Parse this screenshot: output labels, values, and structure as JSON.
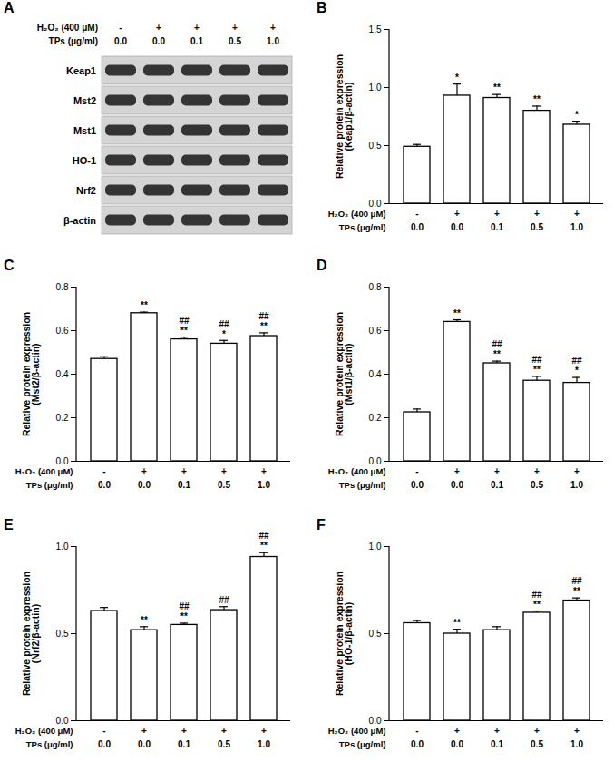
{
  "panel_a": {
    "title": "A",
    "x_label_rows": [
      {
        "label": "H₂O₂ (400 μM)",
        "values": [
          "-",
          "+",
          "+",
          "+",
          "+"
        ]
      },
      {
        "label": "TPs (μg/ml)",
        "values": [
          "0.0",
          "0.0",
          "0.1",
          "0.5",
          "1.0"
        ]
      }
    ],
    "proteins": [
      "Keap1",
      "Mst2",
      "Mst1",
      "HO-1",
      "Nrf2",
      "β-actin"
    ]
  },
  "chart_data": [
    {
      "type": "bar",
      "title": "B",
      "y_label": "Relative protein expression\n(Keap1/β-actin)",
      "x_label_rows": [
        {
          "label": "H₂O₂ (400 μM)",
          "values": [
            "-",
            "+",
            "+",
            "+",
            "+"
          ]
        },
        {
          "label": "TPs (μg/ml)",
          "values": [
            "0.0",
            "0.0",
            "0.1",
            "0.5",
            "1.0"
          ]
        }
      ],
      "values": [
        0.49,
        0.93,
        0.91,
        0.8,
        0.68
      ],
      "errors": [
        0.02,
        0.1,
        0.03,
        0.04,
        0.03
      ],
      "significance": [
        null,
        [
          "*"
        ],
        [
          "**"
        ],
        [
          "**"
        ],
        [
          "*"
        ]
      ],
      "color": "#ffffff",
      "ylim": [
        0,
        1.5
      ],
      "yticks": [
        {
          "value": 0,
          "label": "0.0"
        },
        {
          "value": 0.5,
          "label": "0.5"
        },
        {
          "value": 1.0,
          "label": "1.0"
        },
        {
          "value": 1.5,
          "label": "1.5"
        }
      ]
    },
    {
      "type": "bar",
      "title": "C",
      "y_label": "Relative protein expression\n(Mst2/β-actin)",
      "x_label_rows": [
        {
          "label": "H₂O₂ (400 μM)",
          "values": [
            "-",
            "+",
            "+",
            "+",
            "+"
          ]
        },
        {
          "label": "TPs (μg/ml)",
          "values": [
            "0.0",
            "0.0",
            "0.1",
            "0.5",
            "1.0"
          ]
        }
      ],
      "values": [
        0.47,
        0.68,
        0.56,
        0.54,
        0.575
      ],
      "errors": [
        0.01,
        0.005,
        0.01,
        0.015,
        0.015
      ],
      "significance": [
        null,
        [
          "**"
        ],
        [
          "##",
          "**"
        ],
        [
          "##",
          "*"
        ],
        [
          "##",
          "**"
        ]
      ],
      "color": "#ffffff",
      "ylim": [
        0,
        0.8
      ],
      "yticks": [
        {
          "value": 0,
          "label": "0.0"
        },
        0.2,
        0.4,
        0.6,
        0.8
      ]
    },
    {
      "type": "bar",
      "title": "D",
      "y_label": "Relative protein expression\n(Mst1/β-actin)",
      "x_label_rows": [
        {
          "label": "H₂O₂ (400 μM)",
          "values": [
            "-",
            "+",
            "+",
            "+",
            "+"
          ]
        },
        {
          "label": "TPs (μg/ml)",
          "values": [
            "0.0",
            "0.0",
            "0.1",
            "0.5",
            "1.0"
          ]
        }
      ],
      "values": [
        0.225,
        0.64,
        0.45,
        0.37,
        0.36
      ],
      "errors": [
        0.015,
        0.01,
        0.01,
        0.02,
        0.025
      ],
      "significance": [
        null,
        [
          "**"
        ],
        [
          "##",
          "**"
        ],
        [
          "##",
          "**"
        ],
        [
          "##",
          "*"
        ]
      ],
      "color": "#ffffff",
      "ylim": [
        0,
        0.8
      ],
      "yticks": [
        {
          "value": 0,
          "label": "0.0"
        },
        0.2,
        0.4,
        0.6,
        0.8
      ]
    },
    {
      "type": "bar",
      "title": "E",
      "y_label": "Relative protein expression\n(Nrf2/β-actin)",
      "x_label_rows": [
        {
          "label": "H₂O₂ (400 μM)",
          "values": [
            "-",
            "+",
            "+",
            "+",
            "+"
          ]
        },
        {
          "label": "TPs (μg/ml)",
          "values": [
            "0.0",
            "0.0",
            "0.1",
            "0.5",
            "1.0"
          ]
        }
      ],
      "values": [
        0.63,
        0.52,
        0.55,
        0.635,
        0.94
      ],
      "errors": [
        0.02,
        0.02,
        0.01,
        0.02,
        0.025
      ],
      "significance": [
        null,
        [
          "**"
        ],
        [
          "##",
          "**"
        ],
        [
          "##"
        ],
        [
          "##",
          "**"
        ]
      ],
      "color": "#ffffff",
      "ylim": [
        0,
        1.0
      ],
      "yticks": [
        {
          "value": 0,
          "label": "0.0"
        },
        0.5,
        {
          "value": 1.0,
          "label": "1.0"
        }
      ]
    },
    {
      "type": "bar",
      "title": "F",
      "y_label": "Relative protein expression\n(HO-1/β-actin)",
      "x_label_rows": [
        {
          "label": "H₂O₂ (400 μM)",
          "values": [
            "-",
            "+",
            "+",
            "+",
            "+"
          ]
        },
        {
          "label": "TPs (μg/ml)",
          "values": [
            "0.0",
            "0.0",
            "0.1",
            "0.5",
            "1.0"
          ]
        }
      ],
      "values": [
        0.56,
        0.5,
        0.52,
        0.62,
        0.69
      ],
      "errors": [
        0.015,
        0.025,
        0.02,
        0.01,
        0.015
      ],
      "significance": [
        null,
        [
          "**"
        ],
        null,
        [
          "##",
          "**"
        ],
        [
          "##",
          "**"
        ]
      ],
      "color": "#ffffff",
      "ylim": [
        0,
        1.0
      ],
      "yticks": [
        {
          "value": 0,
          "label": "0.0"
        },
        0.5,
        {
          "value": 1.0,
          "label": "1.0"
        }
      ]
    }
  ]
}
